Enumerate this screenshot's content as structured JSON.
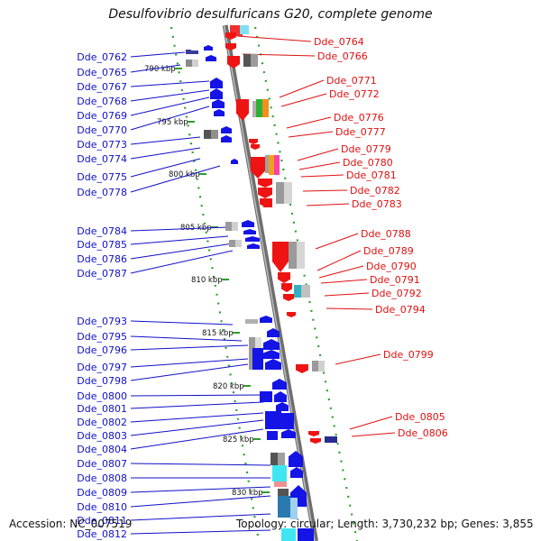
{
  "title": "Desulfovibrio desulfuricans G20, complete genome",
  "footer": {
    "accession": "Accession: NC_007519",
    "topology": "Topology: circular; Length: 3,730,232 bp; Genes: 3,855"
  },
  "colors": {
    "left_labels": "#1010c8",
    "right_labels": "#e01010",
    "backbone": "#888888",
    "dots": "#2e9e2e"
  },
  "kbp_labels": [
    "790 kbp",
    "795 kbp",
    "800 kbp",
    "805 kbp",
    "810 kbp",
    "815 kbp",
    "820 kbp",
    "825 kbp",
    "830 kbp"
  ],
  "left_genes": [
    "Dde_0762",
    "Dde_0765",
    "Dde_0767",
    "Dde_0768",
    "Dde_0769",
    "Dde_0770",
    "Dde_0773",
    "Dde_0774",
    "Dde_0775",
    "Dde_0778",
    "Dde_0784",
    "Dde_0785",
    "Dde_0786",
    "Dde_0787",
    "Dde_0793",
    "Dde_0795",
    "Dde_0796",
    "Dde_0797",
    "Dde_0798",
    "Dde_0800",
    "Dde_0801",
    "Dde_0802",
    "Dde_0803",
    "Dde_0804",
    "Dde_0807",
    "Dde_0808",
    "Dde_0809",
    "Dde_0810",
    "Dde_0811",
    "Dde_0812"
  ],
  "right_genes": [
    "Dde_0764",
    "Dde_0766",
    "Dde_0771",
    "Dde_0772",
    "Dde_0776",
    "Dde_0777",
    "Dde_0779",
    "Dde_0780",
    "Dde_0781",
    "Dde_0782",
    "Dde_0783",
    "Dde_0788",
    "Dde_0789",
    "Dde_0790",
    "Dde_0791",
    "Dde_0792",
    "Dde_0794",
    "Dde_0799",
    "Dde_0805",
    "Dde_0806"
  ]
}
